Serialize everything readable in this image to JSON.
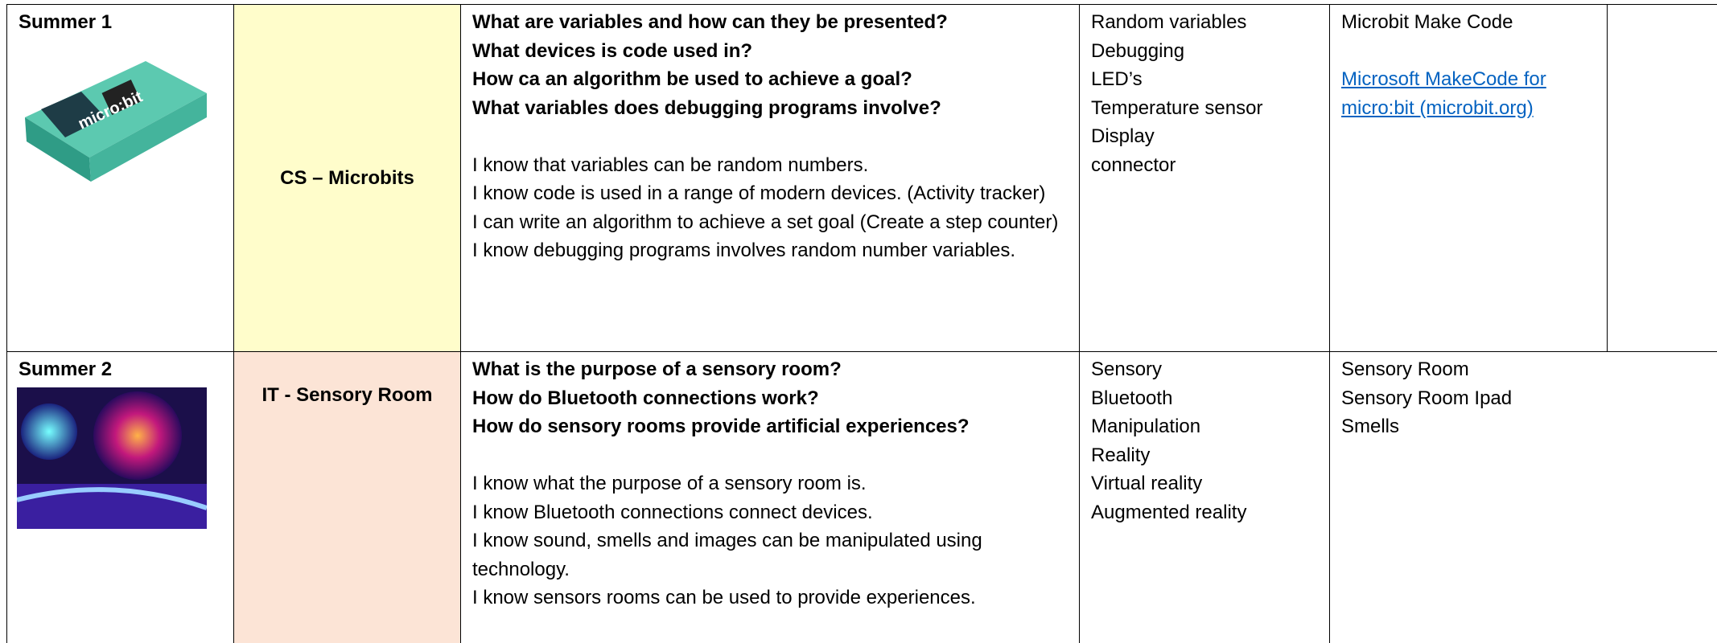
{
  "rows": [
    {
      "term": "Summer 1",
      "topic": "CS – Microbits",
      "questions": [
        "What are variables and how can they be presented?",
        "What devices is code used in?",
        "How ca an algorithm be used to achieve a goal?",
        "What variables does debugging programs involve?"
      ],
      "statements": [
        "I know that variables can be random numbers.",
        "I know code is used in a range of modern devices. (Activity tracker)",
        "I can write an algorithm to achieve a set goal (Create a step counter)",
        "I know debugging programs involves random number variables."
      ],
      "vocabulary": [
        "Random variables",
        "Debugging",
        "LED’s",
        "Temperature sensor",
        "Display",
        "connector"
      ],
      "resources": [
        "Microbit Make Code"
      ],
      "link": "Microsoft MakeCode for micro:bit (microbit.org)"
    },
    {
      "term": "Summer 2",
      "topic": "IT - Sensory Room",
      "questions": [
        "What is the purpose of a sensory room?",
        "How do Bluetooth connections work?",
        "How do sensory rooms provide artificial experiences?"
      ],
      "statements": [
        "I know what the purpose of a sensory room is.",
        "I know Bluetooth connections connect devices.",
        "I know sound, smells and images can be manipulated using technology.",
        "I know sensors rooms can be used to provide experiences."
      ],
      "vocabulary": [
        "Sensory",
        "Bluetooth",
        "Manipulation",
        "Reality",
        "Virtual reality",
        "Augmented reality"
      ],
      "resources": [
        "Sensory Room",
        "Sensory Room Ipad",
        "Smells"
      ]
    }
  ]
}
